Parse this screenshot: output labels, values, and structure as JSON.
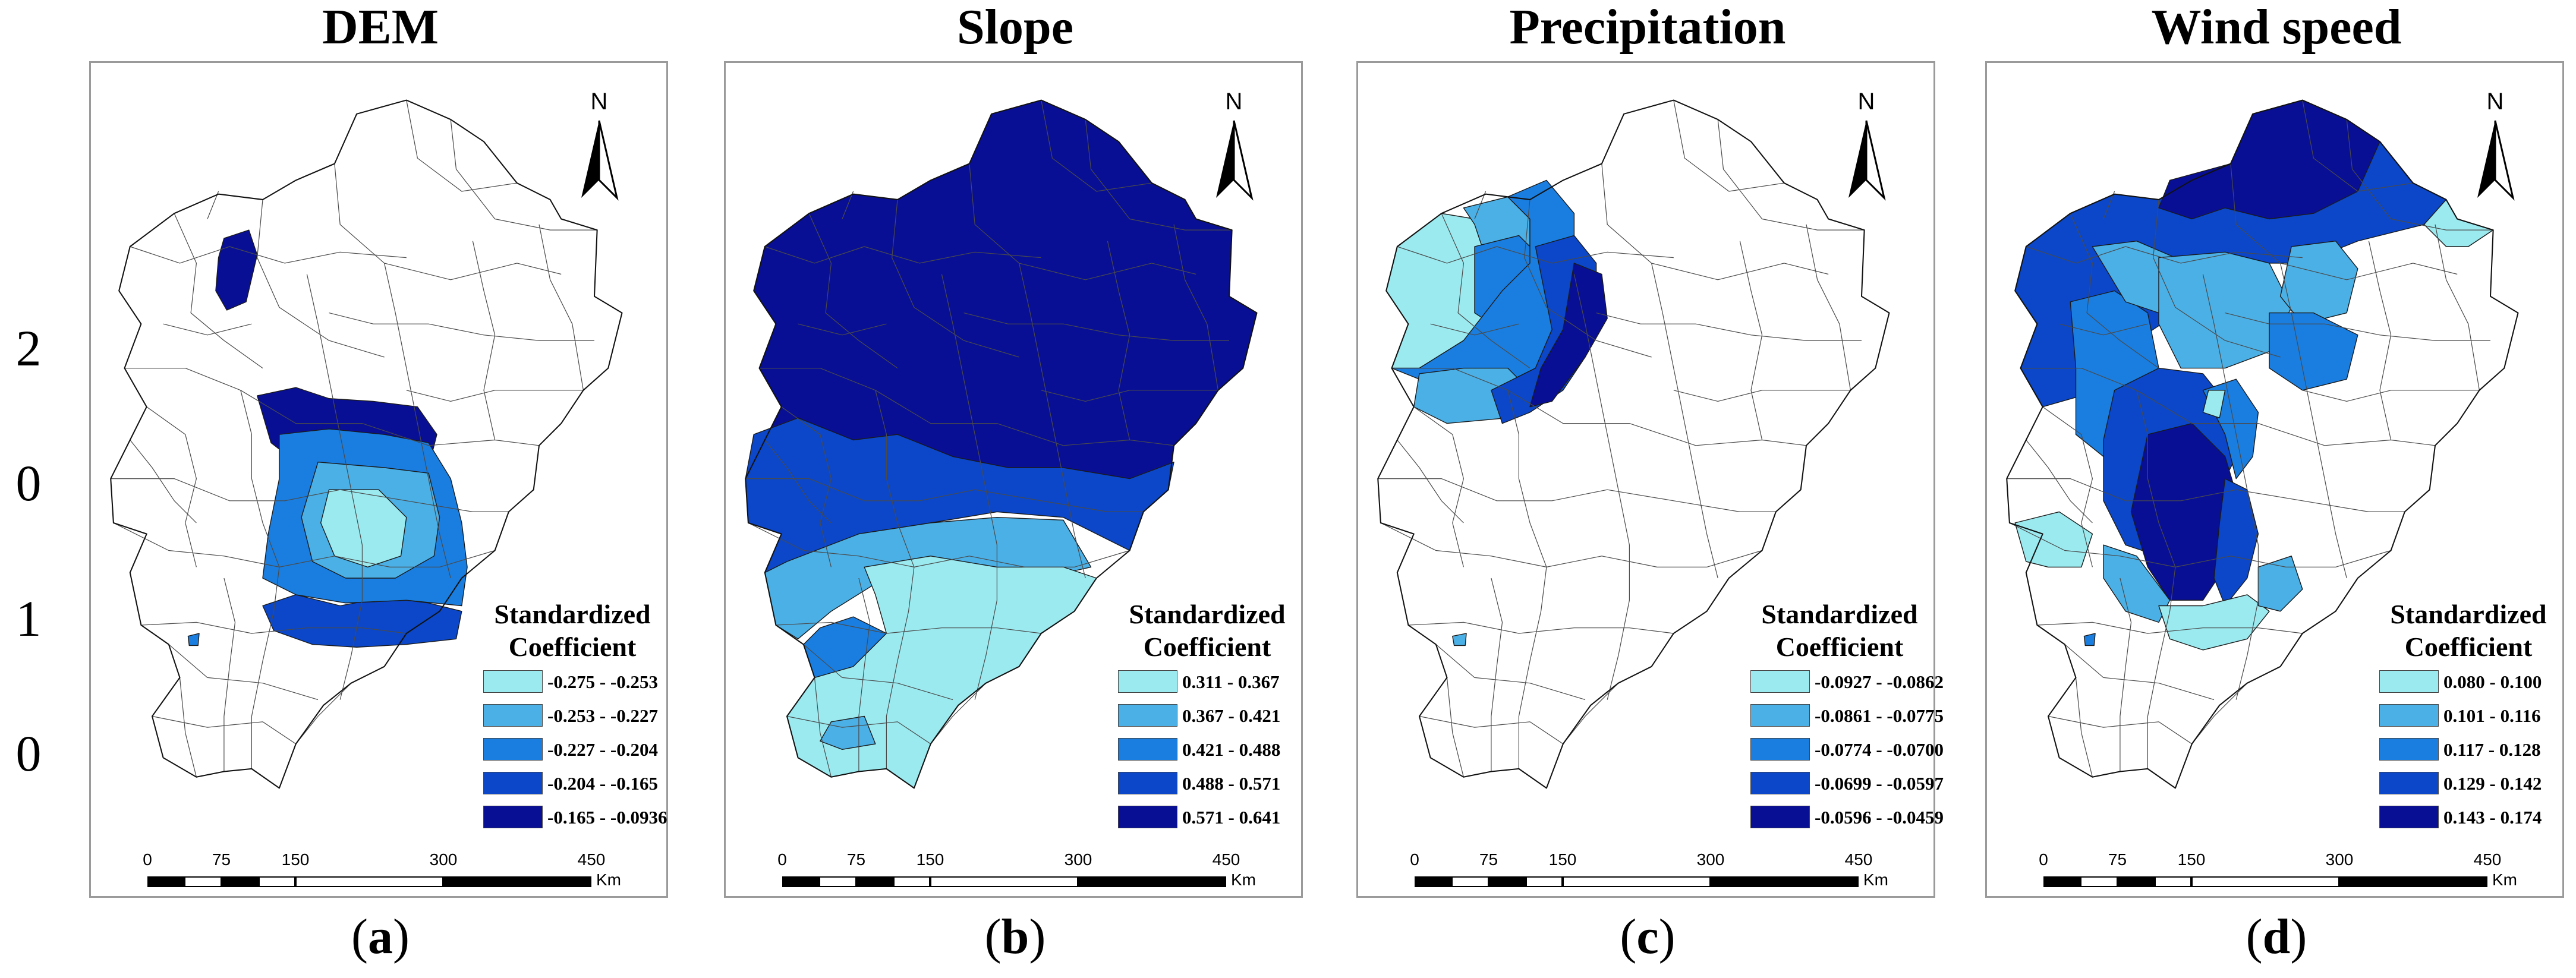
{
  "side_digits": [
    "2",
    "0",
    "1",
    "0"
  ],
  "panels": [
    {
      "title": "DEM",
      "label_letter": "a",
      "north_label": "N",
      "legend_title": [
        "Standardized",
        "Coefficient"
      ],
      "legend": [
        {
          "range": "-0.275 - -0.253",
          "color": "#9beaf0"
        },
        {
          "range": "-0.253 - -0.227",
          "color": "#4bb0e6"
        },
        {
          "range": "-0.227 - -0.204",
          "color": "#1a7ee0"
        },
        {
          "range": "-0.204 - -0.165",
          "color": "#0b47c8"
        },
        {
          "range": "-0.165 - -0.0936",
          "color": "#080f94"
        }
      ],
      "scale_ticks": [
        "0",
        "75",
        "150",
        "300",
        "450"
      ],
      "scale_unit": "Km"
    },
    {
      "title": "Slope",
      "label_letter": "b",
      "north_label": "N",
      "legend_title": [
        "Standardized",
        "Coefficient"
      ],
      "legend": [
        {
          "range": "0.311 - 0.367",
          "color": "#9beaf0"
        },
        {
          "range": "0.367 - 0.421",
          "color": "#4bb0e6"
        },
        {
          "range": "0.421 - 0.488",
          "color": "#1a7ee0"
        },
        {
          "range": "0.488 - 0.571",
          "color": "#0b47c8"
        },
        {
          "range": "0.571 - 0.641",
          "color": "#080f94"
        }
      ],
      "scale_ticks": [
        "0",
        "75",
        "150",
        "300",
        "450"
      ],
      "scale_unit": "Km"
    },
    {
      "title": "Precipitation",
      "label_letter": "c",
      "north_label": "N",
      "legend_title": [
        "Standardized",
        "Coefficient"
      ],
      "legend": [
        {
          "range": "-0.0927 - -0.0862",
          "color": "#9beaf0"
        },
        {
          "range": "-0.0861 - -0.0775",
          "color": "#4bb0e6"
        },
        {
          "range": "-0.0774 - -0.0700",
          "color": "#1a7ee0"
        },
        {
          "range": "-0.0699 - -0.0597",
          "color": "#0b47c8"
        },
        {
          "range": "-0.0596 - -0.0459",
          "color": "#080f94"
        }
      ],
      "scale_ticks": [
        "0",
        "75",
        "150",
        "300",
        "450"
      ],
      "scale_unit": "Km"
    },
    {
      "title": "Wind speed",
      "label_letter": "d",
      "north_label": "N",
      "legend_title": [
        "Standardized",
        "Coefficient"
      ],
      "legend": [
        {
          "range": "0.080 - 0.100",
          "color": "#9beaf0"
        },
        {
          "range": "0.101 - 0.116",
          "color": "#4bb0e6"
        },
        {
          "range": "0.117 - 0.128",
          "color": "#1a7ee0"
        },
        {
          "range": "0.129 - 0.142",
          "color": "#0b47c8"
        },
        {
          "range": "0.143 - 0.174",
          "color": "#080f94"
        }
      ],
      "scale_ticks": [
        "0",
        "75",
        "150",
        "300",
        "450"
      ],
      "scale_unit": "Km"
    }
  ]
}
